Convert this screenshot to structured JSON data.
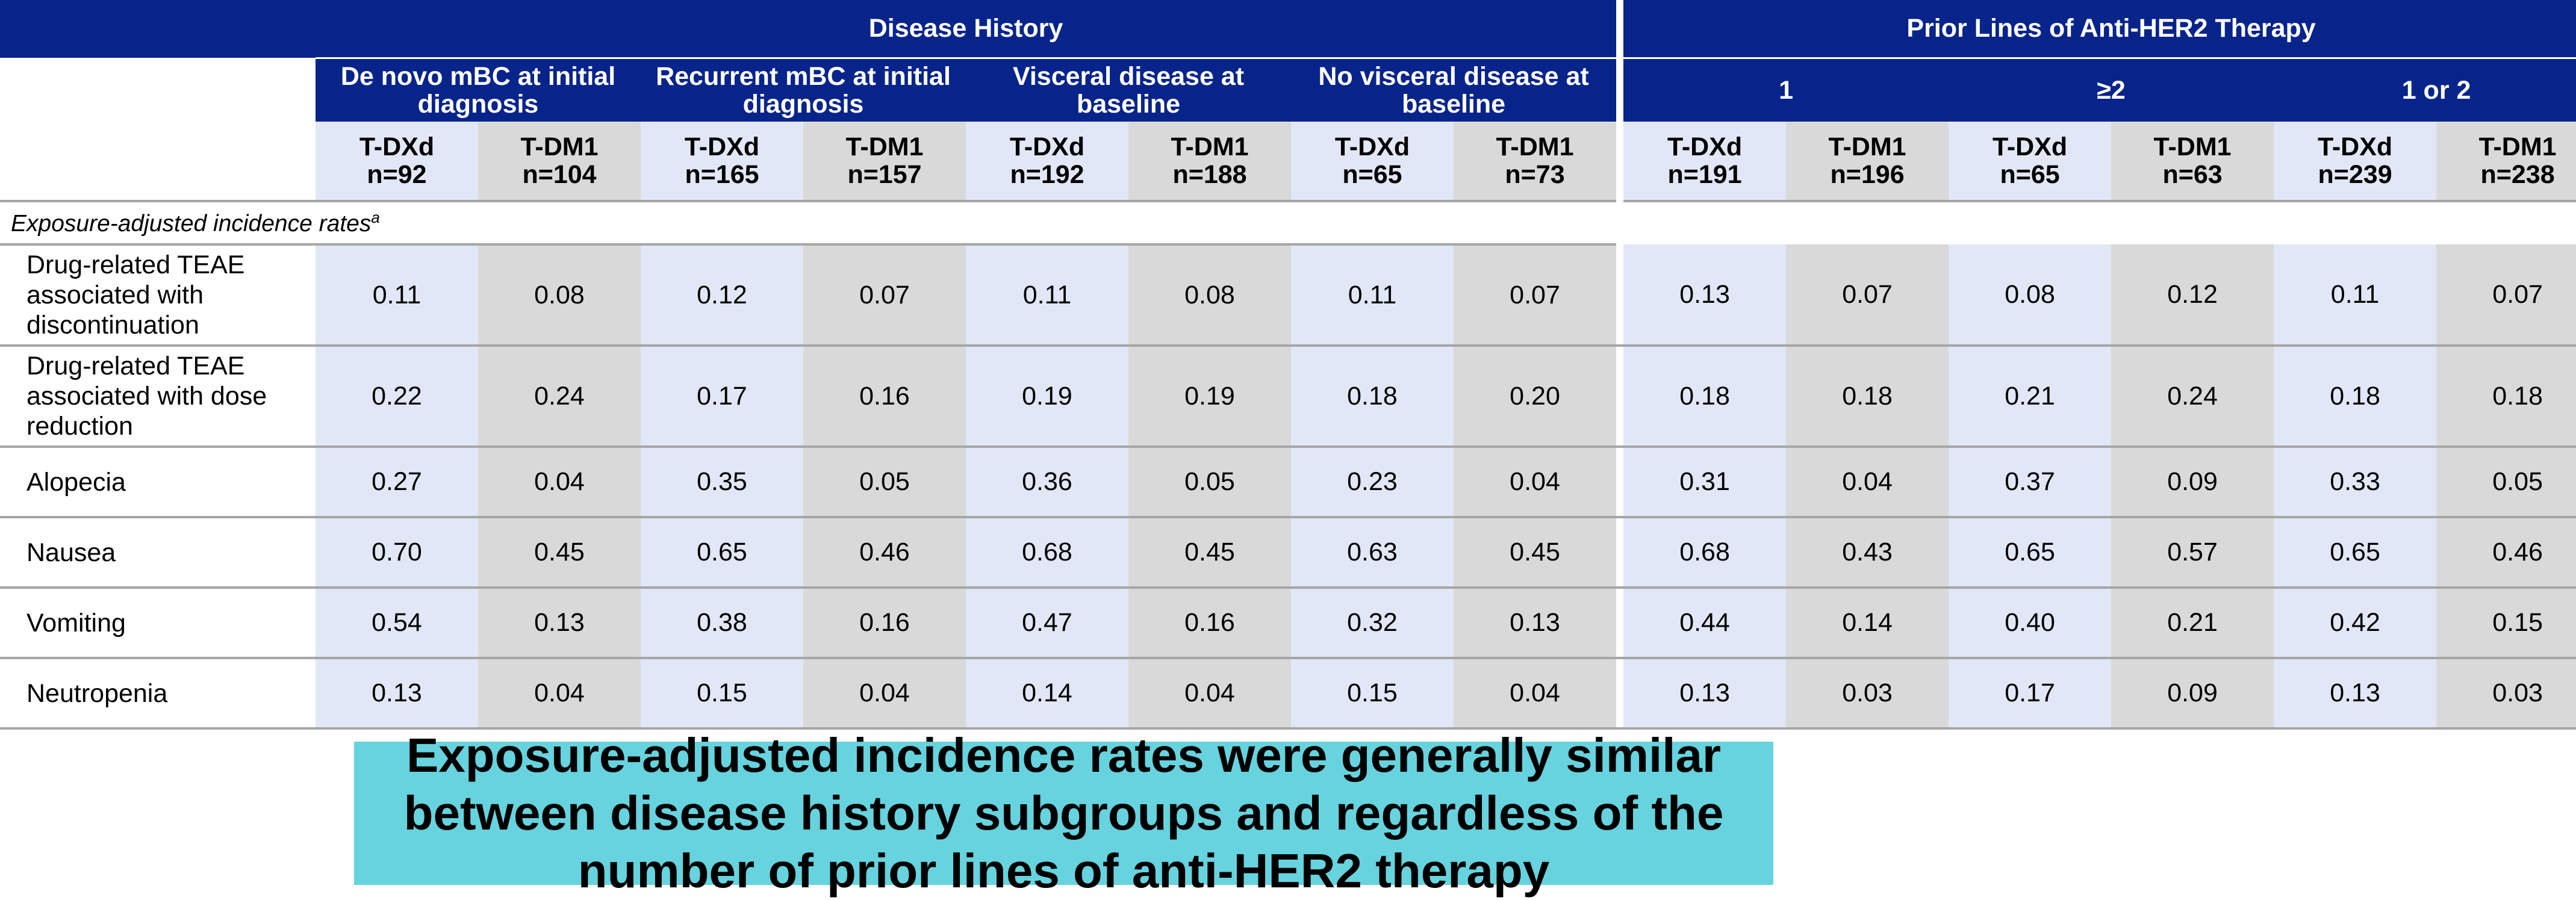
{
  "header": {
    "group1": "Disease History",
    "group2": "Prior Lines of Anti-HER2 Therapy",
    "subgroups": [
      "De novo mBC at initial diagnosis",
      "Recurrent mBC at initial diagnosis",
      "Visceral disease at baseline",
      "No visceral disease at baseline",
      "1",
      "≥2",
      "1 or 2"
    ],
    "columns": [
      {
        "arm": "T-DXd",
        "n": "n=92"
      },
      {
        "arm": "T-DM1",
        "n": "n=104"
      },
      {
        "arm": "T-DXd",
        "n": "n=165"
      },
      {
        "arm": "T-DM1",
        "n": "n=157"
      },
      {
        "arm": "T-DXd",
        "n": "n=192"
      },
      {
        "arm": "T-DM1",
        "n": "n=188"
      },
      {
        "arm": "T-DXd",
        "n": "n=65"
      },
      {
        "arm": "T-DM1",
        "n": "n=73"
      },
      {
        "arm": "T-DXd",
        "n": "n=191"
      },
      {
        "arm": "T-DM1",
        "n": "n=196"
      },
      {
        "arm": "T-DXd",
        "n": "n=65"
      },
      {
        "arm": "T-DM1",
        "n": "n=63"
      },
      {
        "arm": "T-DXd",
        "n": "n=239"
      },
      {
        "arm": "T-DM1",
        "n": "n=238"
      }
    ]
  },
  "section_label": "Exposure-adjusted incidence rates",
  "section_sup": "a",
  "rows": [
    {
      "label": [
        "Drug-related TEAE",
        "associated with",
        "discontinuation"
      ],
      "values": [
        "0.11",
        "0.08",
        "0.12",
        "0.07",
        "0.11",
        "0.08",
        "0.11",
        "0.07",
        "0.13",
        "0.07",
        "0.08",
        "0.12",
        "0.11",
        "0.07"
      ]
    },
    {
      "label": [
        "Drug-related TEAE",
        "associated with dose",
        "reduction"
      ],
      "values": [
        "0.22",
        "0.24",
        "0.17",
        "0.16",
        "0.19",
        "0.19",
        "0.18",
        "0.20",
        "0.18",
        "0.18",
        "0.21",
        "0.24",
        "0.18",
        "0.18"
      ]
    },
    {
      "label": [
        "Alopecia"
      ],
      "values": [
        "0.27",
        "0.04",
        "0.35",
        "0.05",
        "0.36",
        "0.05",
        "0.23",
        "0.04",
        "0.31",
        "0.04",
        "0.37",
        "0.09",
        "0.33",
        "0.05"
      ]
    },
    {
      "label": [
        "Nausea"
      ],
      "values": [
        "0.70",
        "0.45",
        "0.65",
        "0.46",
        "0.68",
        "0.45",
        "0.63",
        "0.45",
        "0.68",
        "0.43",
        "0.65",
        "0.57",
        "0.65",
        "0.46"
      ]
    },
    {
      "label": [
        "Vomiting"
      ],
      "values": [
        "0.54",
        "0.13",
        "0.38",
        "0.16",
        "0.47",
        "0.16",
        "0.32",
        "0.13",
        "0.44",
        "0.14",
        "0.40",
        "0.21",
        "0.42",
        "0.15"
      ]
    },
    {
      "label": [
        "Neutropenia"
      ],
      "values": [
        "0.13",
        "0.04",
        "0.15",
        "0.04",
        "0.14",
        "0.04",
        "0.15",
        "0.04",
        "0.13",
        "0.03",
        "0.17",
        "0.09",
        "0.13",
        "0.03"
      ]
    }
  ],
  "callout": "Exposure-adjusted incidence rates were generally similar between disease history subgroups and regardless of the number of prior lines of anti-HER2 therapy",
  "colors": {
    "header_bg": "#07248a",
    "tdxd_bg": "#e1e7f6",
    "tdm1_bg": "#d9d9d9",
    "callout_bg": "#66d3de",
    "rule": "#a6a6a6"
  }
}
